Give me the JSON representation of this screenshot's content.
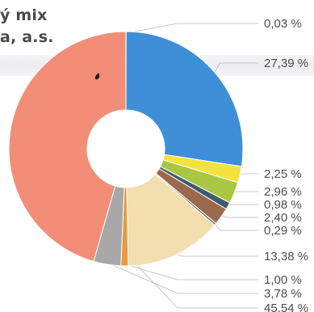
{
  "title": {
    "line1": "ý mix",
    "line2": "a, a.s."
  },
  "chart_data": {
    "type": "pie",
    "donut": true,
    "legend": "none",
    "value_unit": "%",
    "slices": [
      {
        "value": 0.03,
        "label": "0,03 %",
        "color": "#c9c9c9"
      },
      {
        "value": 27.39,
        "label": "27,39 %",
        "color": "#3e8fd7"
      },
      {
        "value": 2.25,
        "label": "2,25 %",
        "color": "#f3e33f"
      },
      {
        "value": 2.96,
        "label": "2,96 %",
        "color": "#a9c742"
      },
      {
        "value": 0.98,
        "label": "0,98 %",
        "color": "#3f5b6e"
      },
      {
        "value": 2.4,
        "label": "2,40 %",
        "color": "#9b6a4d"
      },
      {
        "value": 0.29,
        "label": "0,29 %",
        "color": "#6a6a6a"
      },
      {
        "value": 13.38,
        "label": "13,38 %",
        "color": "#f3deaf"
      },
      {
        "value": 1.0,
        "label": "1,00 %",
        "color": "#e59a45"
      },
      {
        "value": 3.78,
        "label": "3,78 %",
        "color": "#a8a8a8"
      },
      {
        "value": 45.54,
        "label": "45,54 %",
        "color": "#f28e78"
      }
    ]
  }
}
